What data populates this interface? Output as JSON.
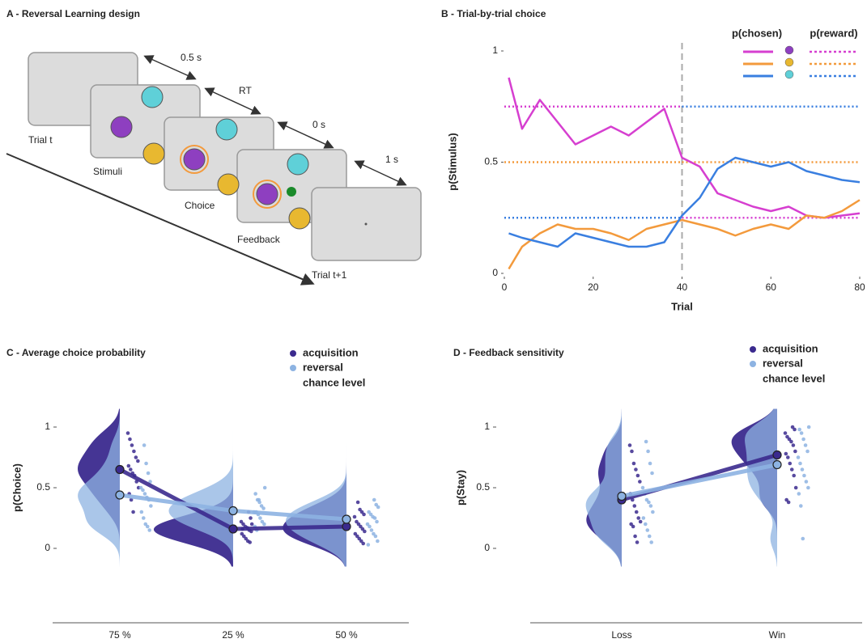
{
  "design": {
    "title": "A - Reversal Learning design",
    "timings": [
      "0.5 s",
      "RT",
      "0 s",
      "1 s"
    ],
    "screens": [
      "Trial t",
      "Stimuli",
      "Choice",
      "Feedback",
      "Trial t+1"
    ]
  },
  "chart_data": [
    {
      "type": "line",
      "title": "B - Trial-by-trial choice",
      "x_label": "Trial",
      "y_label": "p(Stimulus)",
      "xlim": [
        0,
        80
      ],
      "ylim": [
        0,
        1
      ],
      "xticks": [
        0,
        20,
        40,
        60,
        80
      ],
      "yticks": [
        0,
        0.5,
        1
      ],
      "legend_headers": [
        "p(chosen)",
        "p(reward)"
      ],
      "vline": 40,
      "x": [
        1,
        4,
        8,
        12,
        16,
        20,
        24,
        28,
        32,
        36,
        40,
        44,
        48,
        52,
        56,
        60,
        64,
        68,
        72,
        76,
        80
      ],
      "series": [
        {
          "color": "#d63fd0",
          "values": [
            0.88,
            0.65,
            0.78,
            0.68,
            0.58,
            0.62,
            0.66,
            0.62,
            0.68,
            0.74,
            0.52,
            0.48,
            0.36,
            0.33,
            0.3,
            0.28,
            0.3,
            0.26,
            0.25,
            0.26,
            0.27
          ]
        },
        {
          "color": "#f39a3c",
          "values": [
            0.02,
            0.12,
            0.18,
            0.22,
            0.2,
            0.2,
            0.18,
            0.15,
            0.2,
            0.22,
            0.24,
            0.22,
            0.2,
            0.17,
            0.2,
            0.22,
            0.2,
            0.26,
            0.25,
            0.28,
            0.33
          ]
        },
        {
          "color": "#3a7fe0",
          "values": [
            0.18,
            0.16,
            0.14,
            0.12,
            0.18,
            0.16,
            0.14,
            0.12,
            0.12,
            0.14,
            0.26,
            0.34,
            0.47,
            0.52,
            0.5,
            0.48,
            0.5,
            0.46,
            0.44,
            0.42,
            0.41
          ]
        }
      ],
      "reward_periods": [
        0,
        40,
        80
      ],
      "reward_series": [
        {
          "color": "#d63fd0",
          "values": [
            0.75,
            0.25
          ]
        },
        {
          "color": "#f39a3c",
          "values": [
            0.5,
            0.5
          ]
        },
        {
          "color": "#3a7fe0",
          "values": [
            0.25,
            0.75
          ]
        }
      ]
    },
    {
      "type": "raincloud",
      "title": "C - Average choice probability",
      "y_label": "p(Choice)",
      "categories": [
        "75 %",
        "25 %",
        "50 %"
      ],
      "ylim": [
        -0.15,
        1.15
      ],
      "yticks": [
        0,
        0.5,
        1
      ],
      "legend_extra": "chance level",
      "series": [
        {
          "name": "acquisition",
          "color": "#3b2a8e",
          "values": [
            0.65,
            0.16,
            0.18
          ],
          "points": [
            [
              0.95,
              0.9,
              0.85,
              0.8,
              0.75,
              0.72,
              0.68,
              0.65,
              0.62,
              0.6,
              0.55,
              0.5,
              0.45,
              0.4,
              0.3
            ],
            [
              0.3,
              0.25,
              0.22,
              0.2,
              0.18,
              0.17,
              0.15,
              0.14,
              0.12,
              0.1,
              0.08,
              0.06,
              0.05,
              0.2,
              0.16
            ],
            [
              0.38,
              0.32,
              0.3,
              0.28,
              0.26,
              0.22,
              0.2,
              0.18,
              0.16,
              0.14,
              0.12,
              0.1,
              0.08,
              0.06,
              0.04
            ]
          ]
        },
        {
          "name": "reversal",
          "color": "#8db3e2",
          "values": [
            0.44,
            0.31,
            0.24
          ],
          "points": [
            [
              0.85,
              0.7,
              0.62,
              0.55,
              0.5,
              0.48,
              0.45,
              0.42,
              0.4,
              0.35,
              0.3,
              0.25,
              0.2,
              0.18,
              0.15
            ],
            [
              0.5,
              0.45,
              0.4,
              0.38,
              0.35,
              0.33,
              0.3,
              0.3,
              0.28,
              0.25,
              0.22,
              0.2,
              0.18,
              0.15,
              0.4
            ],
            [
              0.4,
              0.36,
              0.34,
              0.3,
              0.28,
              0.26,
              0.25,
              0.22,
              0.2,
              0.18,
              0.15,
              0.12,
              0.1,
              0.06,
              0.03
            ]
          ]
        }
      ]
    },
    {
      "type": "raincloud",
      "title": "D - Feedback sensitivity",
      "y_label": "p(Stay)",
      "categories": [
        "Loss",
        "Win"
      ],
      "ylim": [
        -0.15,
        1.15
      ],
      "yticks": [
        0,
        0.5,
        1
      ],
      "legend_extra": "chance level",
      "series": [
        {
          "name": "acquisition",
          "color": "#3b2a8e",
          "values": [
            0.4,
            0.77
          ],
          "points": [
            [
              0.85,
              0.8,
              0.7,
              0.65,
              0.6,
              0.55,
              0.45,
              0.4,
              0.35,
              0.3,
              0.25,
              0.22,
              0.2,
              0.18,
              0.1,
              0.05
            ],
            [
              1.0,
              0.98,
              0.95,
              0.92,
              0.9,
              0.88,
              0.85,
              0.8,
              0.78,
              0.75,
              0.7,
              0.65,
              0.6,
              0.5,
              0.4,
              0.38
            ]
          ]
        },
        {
          "name": "reversal",
          "color": "#8db3e2",
          "values": [
            0.43,
            0.69
          ],
          "points": [
            [
              0.88,
              0.8,
              0.7,
              0.62,
              0.5,
              0.45,
              0.4,
              0.38,
              0.35,
              0.3,
              0.25,
              0.2,
              0.15,
              0.1,
              0.05
            ],
            [
              1.0,
              0.98,
              0.95,
              0.9,
              0.85,
              0.8,
              0.75,
              0.7,
              0.65,
              0.6,
              0.55,
              0.5,
              0.45,
              0.35,
              0.08
            ]
          ]
        }
      ]
    }
  ]
}
